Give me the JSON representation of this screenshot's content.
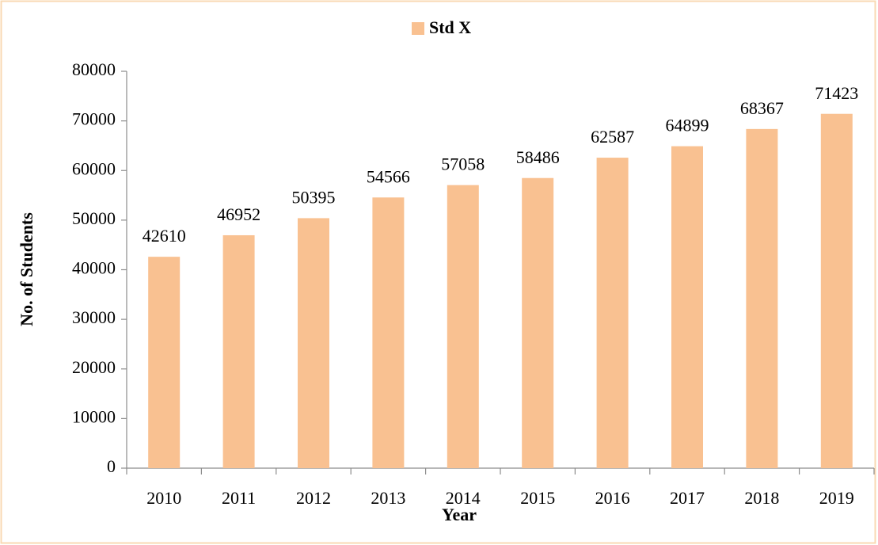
{
  "chart_data": {
    "type": "bar",
    "categories": [
      "2010",
      "2011",
      "2012",
      "2013",
      "2014",
      "2015",
      "2016",
      "2017",
      "2018",
      "2019"
    ],
    "series": [
      {
        "name": "Std X",
        "color": "#f9c191",
        "values": [
          42610,
          46952,
          50395,
          54566,
          57058,
          58486,
          62587,
          64899,
          68367,
          71423
        ]
      }
    ],
    "xlabel": "Year",
    "ylabel": "No. of Students",
    "ylim": [
      0,
      80000
    ],
    "yticks": [
      0,
      10000,
      20000,
      30000,
      40000,
      50000,
      60000,
      70000,
      80000
    ],
    "grid": false,
    "legend": "top"
  }
}
